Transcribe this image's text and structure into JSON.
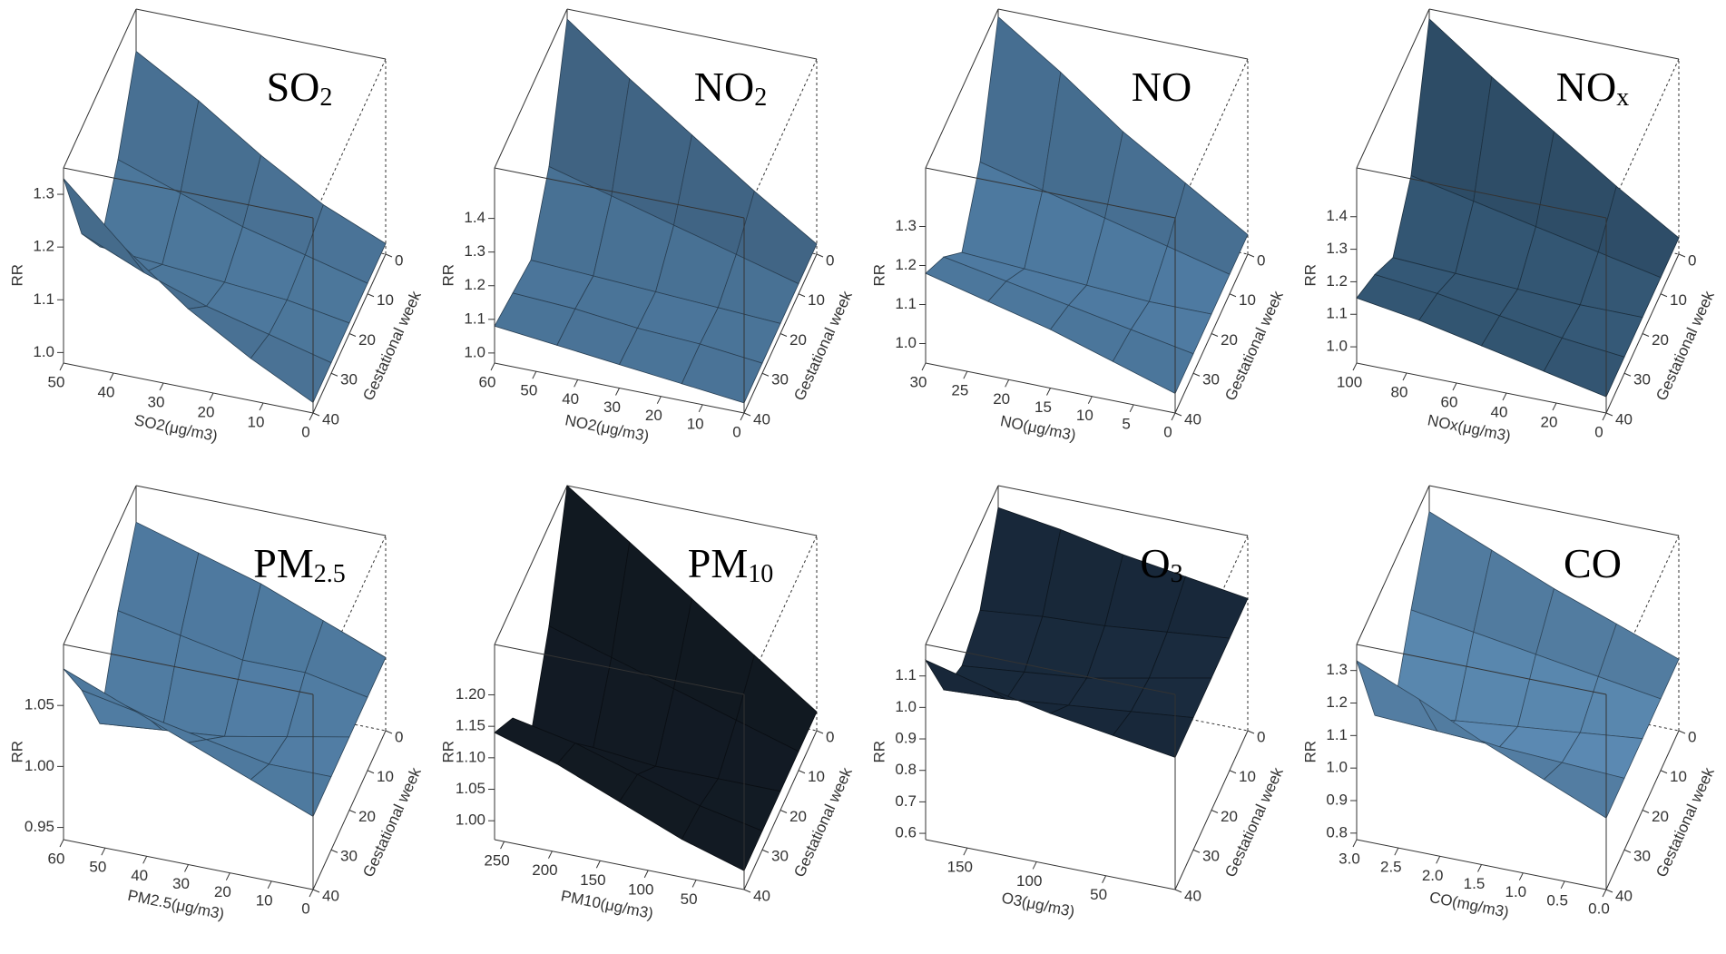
{
  "chart_data": [
    {
      "type": "surface",
      "title": "SO",
      "title_sub": "2",
      "color": "#5e92bf",
      "xlabel": "SO2(μg/m3)",
      "ylabel": "Gestational week",
      "zlabel": "RR",
      "xlim": [
        0,
        50
      ],
      "ylim": [
        0,
        40
      ],
      "zlim": [
        0.98,
        1.35
      ],
      "xticks": [
        50,
        40,
        30,
        20,
        10,
        0
      ],
      "yticks": [
        0,
        10,
        20,
        30,
        40
      ],
      "zticks": [
        {
          "value": 1,
          "label": "1.0"
        },
        1.1,
        1.2,
        1.3
      ],
      "x": [
        0,
        12.5,
        25,
        37.5,
        50
      ],
      "y": [
        0,
        10,
        20,
        30,
        40
      ],
      "z": [
        [
          1.0,
          1.0,
          1.0,
          1.0,
          1.0
        ],
        [
          1.05,
          1.03,
          1.02,
          1.03,
          1.06
        ],
        [
          1.12,
          1.06,
          1.03,
          1.06,
          1.13
        ],
        [
          1.2,
          1.1,
          1.04,
          1.1,
          1.22
        ],
        [
          1.27,
          1.14,
          1.05,
          1.15,
          1.33
        ]
      ]
    },
    {
      "type": "surface",
      "title": "NO",
      "title_sub": "2",
      "color": "#5a8cb8",
      "xlabel": "NO2(μg/m3)",
      "ylabel": "Gestational week",
      "zlabel": "RR",
      "xlim": [
        0,
        60
      ],
      "ylim": [
        0,
        40
      ],
      "zlim": [
        0.97,
        1.55
      ],
      "xticks": [
        60,
        50,
        40,
        30,
        20,
        10,
        0
      ],
      "yticks": [
        0,
        10,
        20,
        30,
        40
      ],
      "zticks": [
        {
          "value": 1,
          "label": "1.0"
        },
        1.1,
        1.2,
        1.3,
        1.4
      ],
      "x": [
        0,
        15,
        30,
        45,
        60
      ],
      "y": [
        0,
        10,
        20,
        30,
        40
      ],
      "z": [
        [
          1,
          1,
          1,
          1,
          1
        ],
        [
          1.12,
          1.05,
          1.01,
          1.02,
          1.02
        ],
        [
          1.25,
          1.1,
          1.02,
          1.03,
          1.04
        ],
        [
          1.38,
          1.15,
          1.03,
          1.05,
          1.06
        ],
        [
          1.52,
          1.2,
          1.04,
          1.06,
          1.08
        ]
      ]
    },
    {
      "type": "surface",
      "title": "NO",
      "color": "#5f95c4",
      "xlabel": "NO(μg/m3)",
      "ylabel": "Gestational week",
      "zlabel": "RR",
      "xlim": [
        0,
        30
      ],
      "ylim": [
        0,
        40
      ],
      "zlim": [
        0.95,
        1.45
      ],
      "xticks": [
        30,
        25,
        20,
        15,
        10,
        5,
        0
      ],
      "yticks": [
        0,
        10,
        20,
        30,
        40
      ],
      "zticks": [
        {
          "value": 1,
          "label": "1.0"
        },
        1.1,
        1.2,
        1.3
      ],
      "x": [
        0,
        7.5,
        15,
        22.5,
        30
      ],
      "y": [
        0,
        10,
        20,
        30,
        40
      ],
      "z": [
        [
          1,
          1,
          1,
          1,
          1
        ],
        [
          1.1,
          1.04,
          1.0,
          1.03,
          1.05
        ],
        [
          1.2,
          1.08,
          1.01,
          1.06,
          1.1
        ],
        [
          1.32,
          1.12,
          1.02,
          1.09,
          1.14
        ],
        [
          1.43,
          1.16,
          1.03,
          1.12,
          1.18
        ]
      ]
    },
    {
      "type": "surface",
      "title": "NO",
      "title_sub": "x",
      "color": "#3f6a8e",
      "xlabel": "NOx(μg/m3)",
      "ylabel": "Gestational week",
      "zlabel": "RR",
      "xlim": [
        0,
        100
      ],
      "ylim": [
        0,
        40
      ],
      "zlim": [
        0.95,
        1.55
      ],
      "xticks": [
        100,
        80,
        60,
        40,
        20,
        0
      ],
      "yticks": [
        0,
        10,
        20,
        30,
        40
      ],
      "zticks": [
        {
          "value": 1,
          "label": "1.0"
        },
        1.1,
        1.2,
        1.3,
        1.4
      ],
      "x": [
        0,
        25,
        50,
        75,
        100
      ],
      "y": [
        0,
        10,
        20,
        30,
        40
      ],
      "z": [
        [
          1,
          1,
          1,
          1,
          1
        ],
        [
          1.12,
          1.04,
          1.0,
          1.02,
          1.04
        ],
        [
          1.25,
          1.08,
          1.01,
          1.05,
          1.08
        ],
        [
          1.38,
          1.12,
          1.02,
          1.08,
          1.12
        ],
        [
          1.52,
          1.16,
          1.03,
          1.1,
          1.15
        ]
      ]
    },
    {
      "type": "surface",
      "title": "PM",
      "title_sub": "2.5",
      "color": "#5e92bf",
      "xlabel": "PM2.5(μg/m3)",
      "ylabel": "Gestational week",
      "zlabel": "RR",
      "xlim": [
        0,
        60
      ],
      "ylim": [
        0,
        40
      ],
      "zlim": [
        0.94,
        1.1
      ],
      "xticks": [
        60,
        50,
        40,
        30,
        20,
        10,
        0
      ],
      "yticks": [
        0,
        10,
        20,
        30,
        40
      ],
      "zticks": [
        0.95,
        {
          "value": 1,
          "label": "1.00"
        },
        1.05
      ],
      "x": [
        0,
        15,
        30,
        45,
        60
      ],
      "y": [
        0,
        10,
        20,
        30,
        40
      ],
      "z": [
        [
          1,
          1,
          1,
          1,
          1
        ],
        [
          1.02,
          1.01,
          0.99,
          1.0,
          1.02
        ],
        [
          1.04,
          1.01,
          0.98,
          1.01,
          1.04
        ],
        [
          1.055,
          1.02,
          0.975,
          1.02,
          1.06
        ],
        [
          1.07,
          1.03,
          0.97,
          1.03,
          1.08
        ]
      ]
    },
    {
      "type": "surface",
      "title": "PM",
      "title_sub": "10",
      "color": "#16202b",
      "xlabel": "PM10(μg/m3)",
      "ylabel": "Gestational week",
      "zlabel": "RR",
      "xlim": [
        0,
        260
      ],
      "ylim": [
        0,
        40
      ],
      "zlim": [
        0.97,
        1.28
      ],
      "xticks": [
        250,
        200,
        150,
        100,
        50
      ],
      "yticks": [
        0,
        10,
        20,
        30,
        40
      ],
      "zticks": [
        {
          "value": 1,
          "label": "1.00"
        },
        1.05,
        {
          "value": 1.1,
          "label": "1.10"
        },
        1.15,
        {
          "value": 1.2,
          "label": "1.20"
        }
      ],
      "x": [
        0,
        65,
        130,
        195,
        260
      ],
      "y": [
        0,
        10,
        20,
        30,
        40
      ],
      "z": [
        [
          1,
          1,
          1,
          1,
          1
        ],
        [
          1.07,
          1.03,
          1.0,
          1.02,
          1.03
        ],
        [
          1.14,
          1.06,
          1.0,
          1.05,
          1.07
        ],
        [
          1.21,
          1.09,
          1.01,
          1.08,
          1.11
        ],
        [
          1.28,
          1.12,
          1.01,
          1.1,
          1.14
        ]
      ]
    },
    {
      "type": "surface",
      "title": "O",
      "title_sub": "3",
      "color": "#1d3045",
      "xlabel": "O3(μg/m3)",
      "ylabel": "Gestational week",
      "zlabel": "RR",
      "xlim": [
        0,
        180
      ],
      "ylim": [
        0,
        40
      ],
      "zlim": [
        0.58,
        1.2
      ],
      "xticks": [
        150,
        100,
        50
      ],
      "yticks": [
        0,
        10,
        20,
        30,
        40
      ],
      "zticks": [
        0.6,
        0.7,
        0.8,
        0.9,
        {
          "value": 1,
          "label": "1.0"
        },
        1.1
      ],
      "x": [
        0,
        45,
        90,
        135,
        180
      ],
      "y": [
        0,
        10,
        20,
        30,
        40
      ],
      "z": [
        [
          1,
          1,
          1,
          1,
          1
        ],
        [
          1.03,
          0.98,
          0.96,
          0.98,
          1.03
        ],
        [
          1.06,
          0.96,
          0.92,
          0.96,
          1.06
        ],
        [
          1.1,
          0.95,
          0.9,
          0.94,
          1.1
        ],
        [
          1.13,
          0.93,
          0.88,
          0.93,
          1.15
        ]
      ]
    },
    {
      "type": "surface",
      "title": "CO",
      "color": "#6aa0cf",
      "xlabel": "CO(mg/m3)",
      "ylabel": "Gestational week",
      "zlabel": "RR",
      "xlim": [
        0,
        3
      ],
      "ylim": [
        0,
        40
      ],
      "zlim": [
        0.78,
        1.38
      ],
      "xticks": [
        {
          "value": 3,
          "label": "3.0"
        },
        2.5,
        {
          "value": 2,
          "label": "2.0"
        },
        1.5,
        {
          "value": 1,
          "label": "1.0"
        },
        0.5,
        {
          "value": 0,
          "label": "0.0"
        }
      ],
      "yticks": [
        0,
        10,
        20,
        30,
        40
      ],
      "zticks": [
        0.8,
        0.9,
        {
          "value": 1,
          "label": "1.0"
        },
        1.1,
        1.2,
        1.3
      ],
      "x": [
        0,
        0.75,
        1.5,
        2.25,
        3
      ],
      "y": [
        0,
        10,
        20,
        30,
        40
      ],
      "z": [
        [
          1,
          1,
          1,
          1,
          1
        ],
        [
          1.07,
          1.03,
          0.98,
          1.01,
          1.08
        ],
        [
          1.14,
          1.06,
          0.96,
          1.02,
          1.16
        ],
        [
          1.22,
          1.09,
          0.94,
          1.03,
          1.25
        ],
        [
          1.3,
          1.12,
          0.92,
          1.04,
          1.33
        ]
      ]
    }
  ]
}
